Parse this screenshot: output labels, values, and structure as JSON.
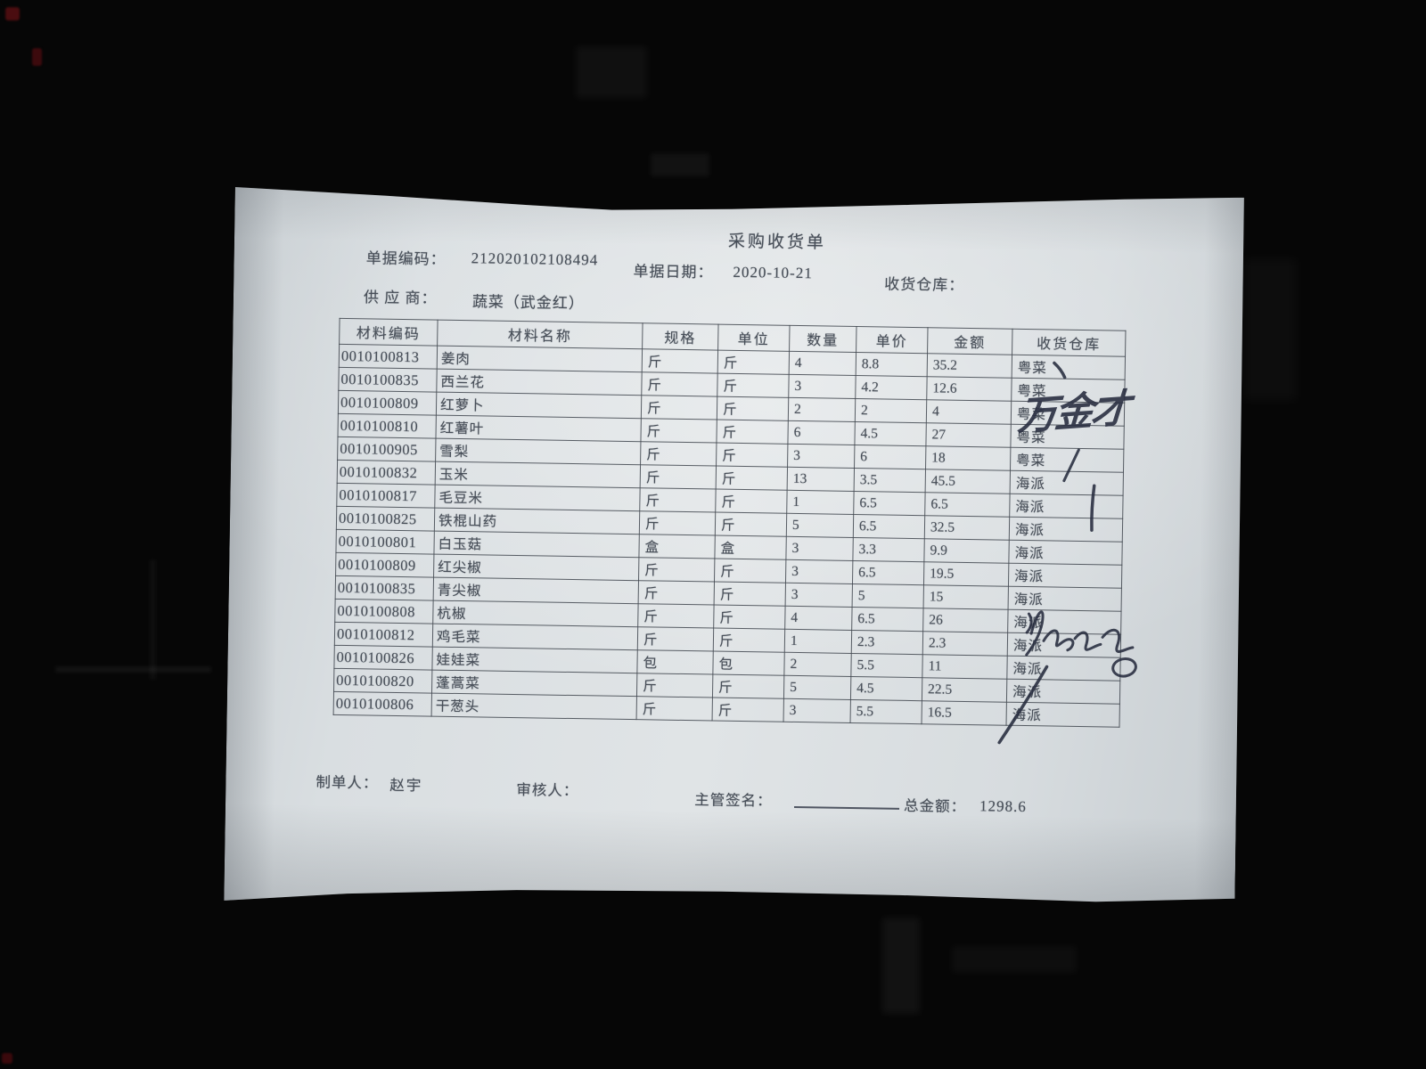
{
  "colors": {
    "background": "#060606",
    "paper": "#dbe0e3",
    "print_ink": "#474e58",
    "pen_ink": "#262b3d"
  },
  "document": {
    "title": "采购收货单",
    "fields": {
      "doc_code_label": "单据编码：",
      "doc_code_value": "212020102108494",
      "doc_date_label": "单据日期：",
      "doc_date_value": "2020-10-21",
      "warehouse_label": "收货仓库：",
      "warehouse_value": "",
      "supplier_label": "供 应 商：",
      "supplier_value": "蔬菜（武金红）"
    },
    "table": {
      "headers": [
        "材料编码",
        "材料名称",
        "规格",
        "单位",
        "数量",
        "单价",
        "金额",
        "收货仓库"
      ],
      "rows": [
        [
          "0010100813",
          "姜肉",
          "斤",
          "斤",
          "4",
          "8.8",
          "35.2",
          "粤菜"
        ],
        [
          "0010100835",
          "西兰花",
          "斤",
          "斤",
          "3",
          "4.2",
          "12.6",
          "粤菜"
        ],
        [
          "0010100809",
          "红萝卜",
          "斤",
          "斤",
          "2",
          "2",
          "4",
          "粤菜"
        ],
        [
          "0010100810",
          "红薯叶",
          "斤",
          "斤",
          "6",
          "4.5",
          "27",
          "粤菜"
        ],
        [
          "0010100905",
          "雪梨",
          "斤",
          "斤",
          "3",
          "6",
          "18",
          "粤菜"
        ],
        [
          "0010100832",
          "玉米",
          "斤",
          "斤",
          "13",
          "3.5",
          "45.5",
          "海派"
        ],
        [
          "0010100817",
          "毛豆米",
          "斤",
          "斤",
          "1",
          "6.5",
          "6.5",
          "海派"
        ],
        [
          "0010100825",
          "铁棍山药",
          "斤",
          "斤",
          "5",
          "6.5",
          "32.5",
          "海派"
        ],
        [
          "0010100801",
          "白玉菇",
          "盒",
          "盒",
          "3",
          "3.3",
          "9.9",
          "海派"
        ],
        [
          "0010100809",
          "红尖椒",
          "斤",
          "斤",
          "3",
          "6.5",
          "19.5",
          "海派"
        ],
        [
          "0010100835",
          "青尖椒",
          "斤",
          "斤",
          "3",
          "5",
          "15",
          "海派"
        ],
        [
          "0010100808",
          "杭椒",
          "斤",
          "斤",
          "4",
          "6.5",
          "26",
          "海派"
        ],
        [
          "0010100812",
          "鸡毛菜",
          "斤",
          "斤",
          "1",
          "2.3",
          "2.3",
          "海派"
        ],
        [
          "0010100826",
          "娃娃菜",
          "包",
          "包",
          "2",
          "5.5",
          "11",
          "海派"
        ],
        [
          "0010100820",
          "蓬蒿菜",
          "斤",
          "斤",
          "5",
          "4.5",
          "22.5",
          "海派"
        ],
        [
          "0010100806",
          "干葱头",
          "斤",
          "斤",
          "3",
          "5.5",
          "16.5",
          "海派"
        ]
      ]
    },
    "footer": {
      "preparer_label": "制单人：",
      "preparer_value": "赵宇",
      "reviewer_label": "审核人：",
      "reviewer_value": "",
      "manager_sign_label": "主管签名：",
      "total_label": "总金额：",
      "total_value": "1298.6"
    },
    "annotations": {
      "handwritten_name": "万金才",
      "pen_marks": [
        "tick-stroke-row-1",
        "slash-stroke-row-6",
        "vertical-stroke-rows-7-8",
        "signature-scribble",
        "long-slash-rows-15-16"
      ]
    }
  }
}
